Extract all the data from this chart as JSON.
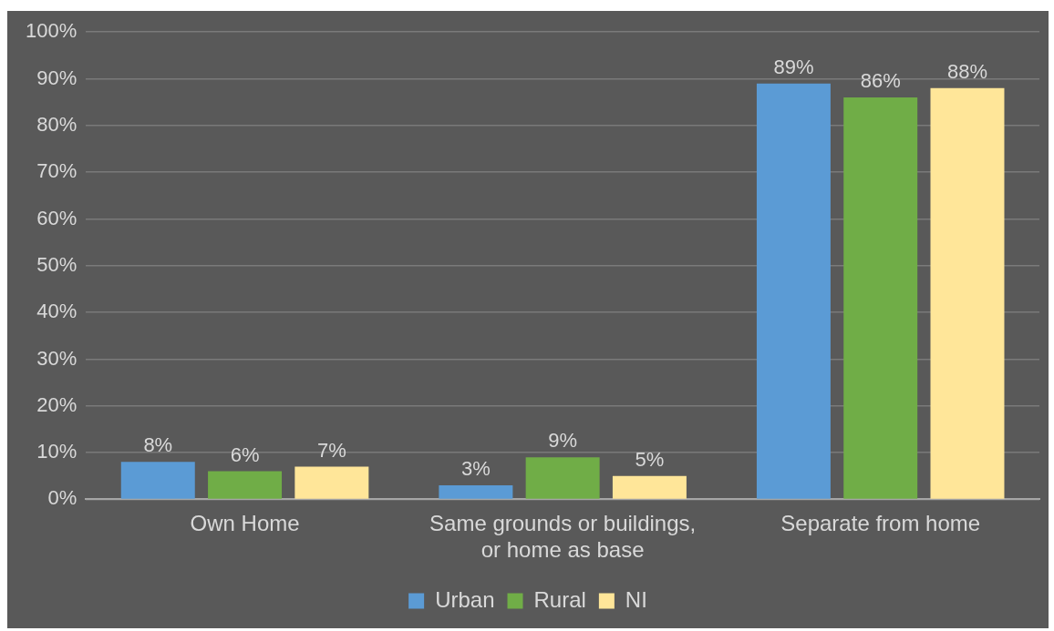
{
  "chart_data": {
    "type": "bar",
    "categories": [
      "Own Home",
      "Same grounds or buildings, or home as base",
      "Separate from home"
    ],
    "series": [
      {
        "name": "Urban",
        "color": "#5b9bd5",
        "values": [
          8,
          3,
          89
        ],
        "value_labels": [
          "8%",
          "3%",
          "89%"
        ]
      },
      {
        "name": "Rural",
        "color": "#70ad47",
        "values": [
          6,
          9,
          86
        ],
        "value_labels": [
          "6%",
          "9%",
          "86%"
        ]
      },
      {
        "name": "NI",
        "color": "#ffe699",
        "values": [
          7,
          5,
          88
        ],
        "value_labels": [
          "7%",
          "5%",
          "88%"
        ]
      }
    ],
    "ylim": [
      0,
      100
    ],
    "yticks": [
      {
        "value": 0,
        "label": "0%"
      },
      {
        "value": 10,
        "label": "10%"
      },
      {
        "value": 20,
        "label": "20%"
      },
      {
        "value": 30,
        "label": "30%"
      },
      {
        "value": 40,
        "label": "40%"
      },
      {
        "value": 50,
        "label": "50%"
      },
      {
        "value": 60,
        "label": "60%"
      },
      {
        "value": 70,
        "label": "70%"
      },
      {
        "value": 80,
        "label": "80%"
      },
      {
        "value": 90,
        "label": "90%"
      },
      {
        "value": 100,
        "label": "100%"
      }
    ],
    "grid": "y",
    "legend": "bottom"
  }
}
